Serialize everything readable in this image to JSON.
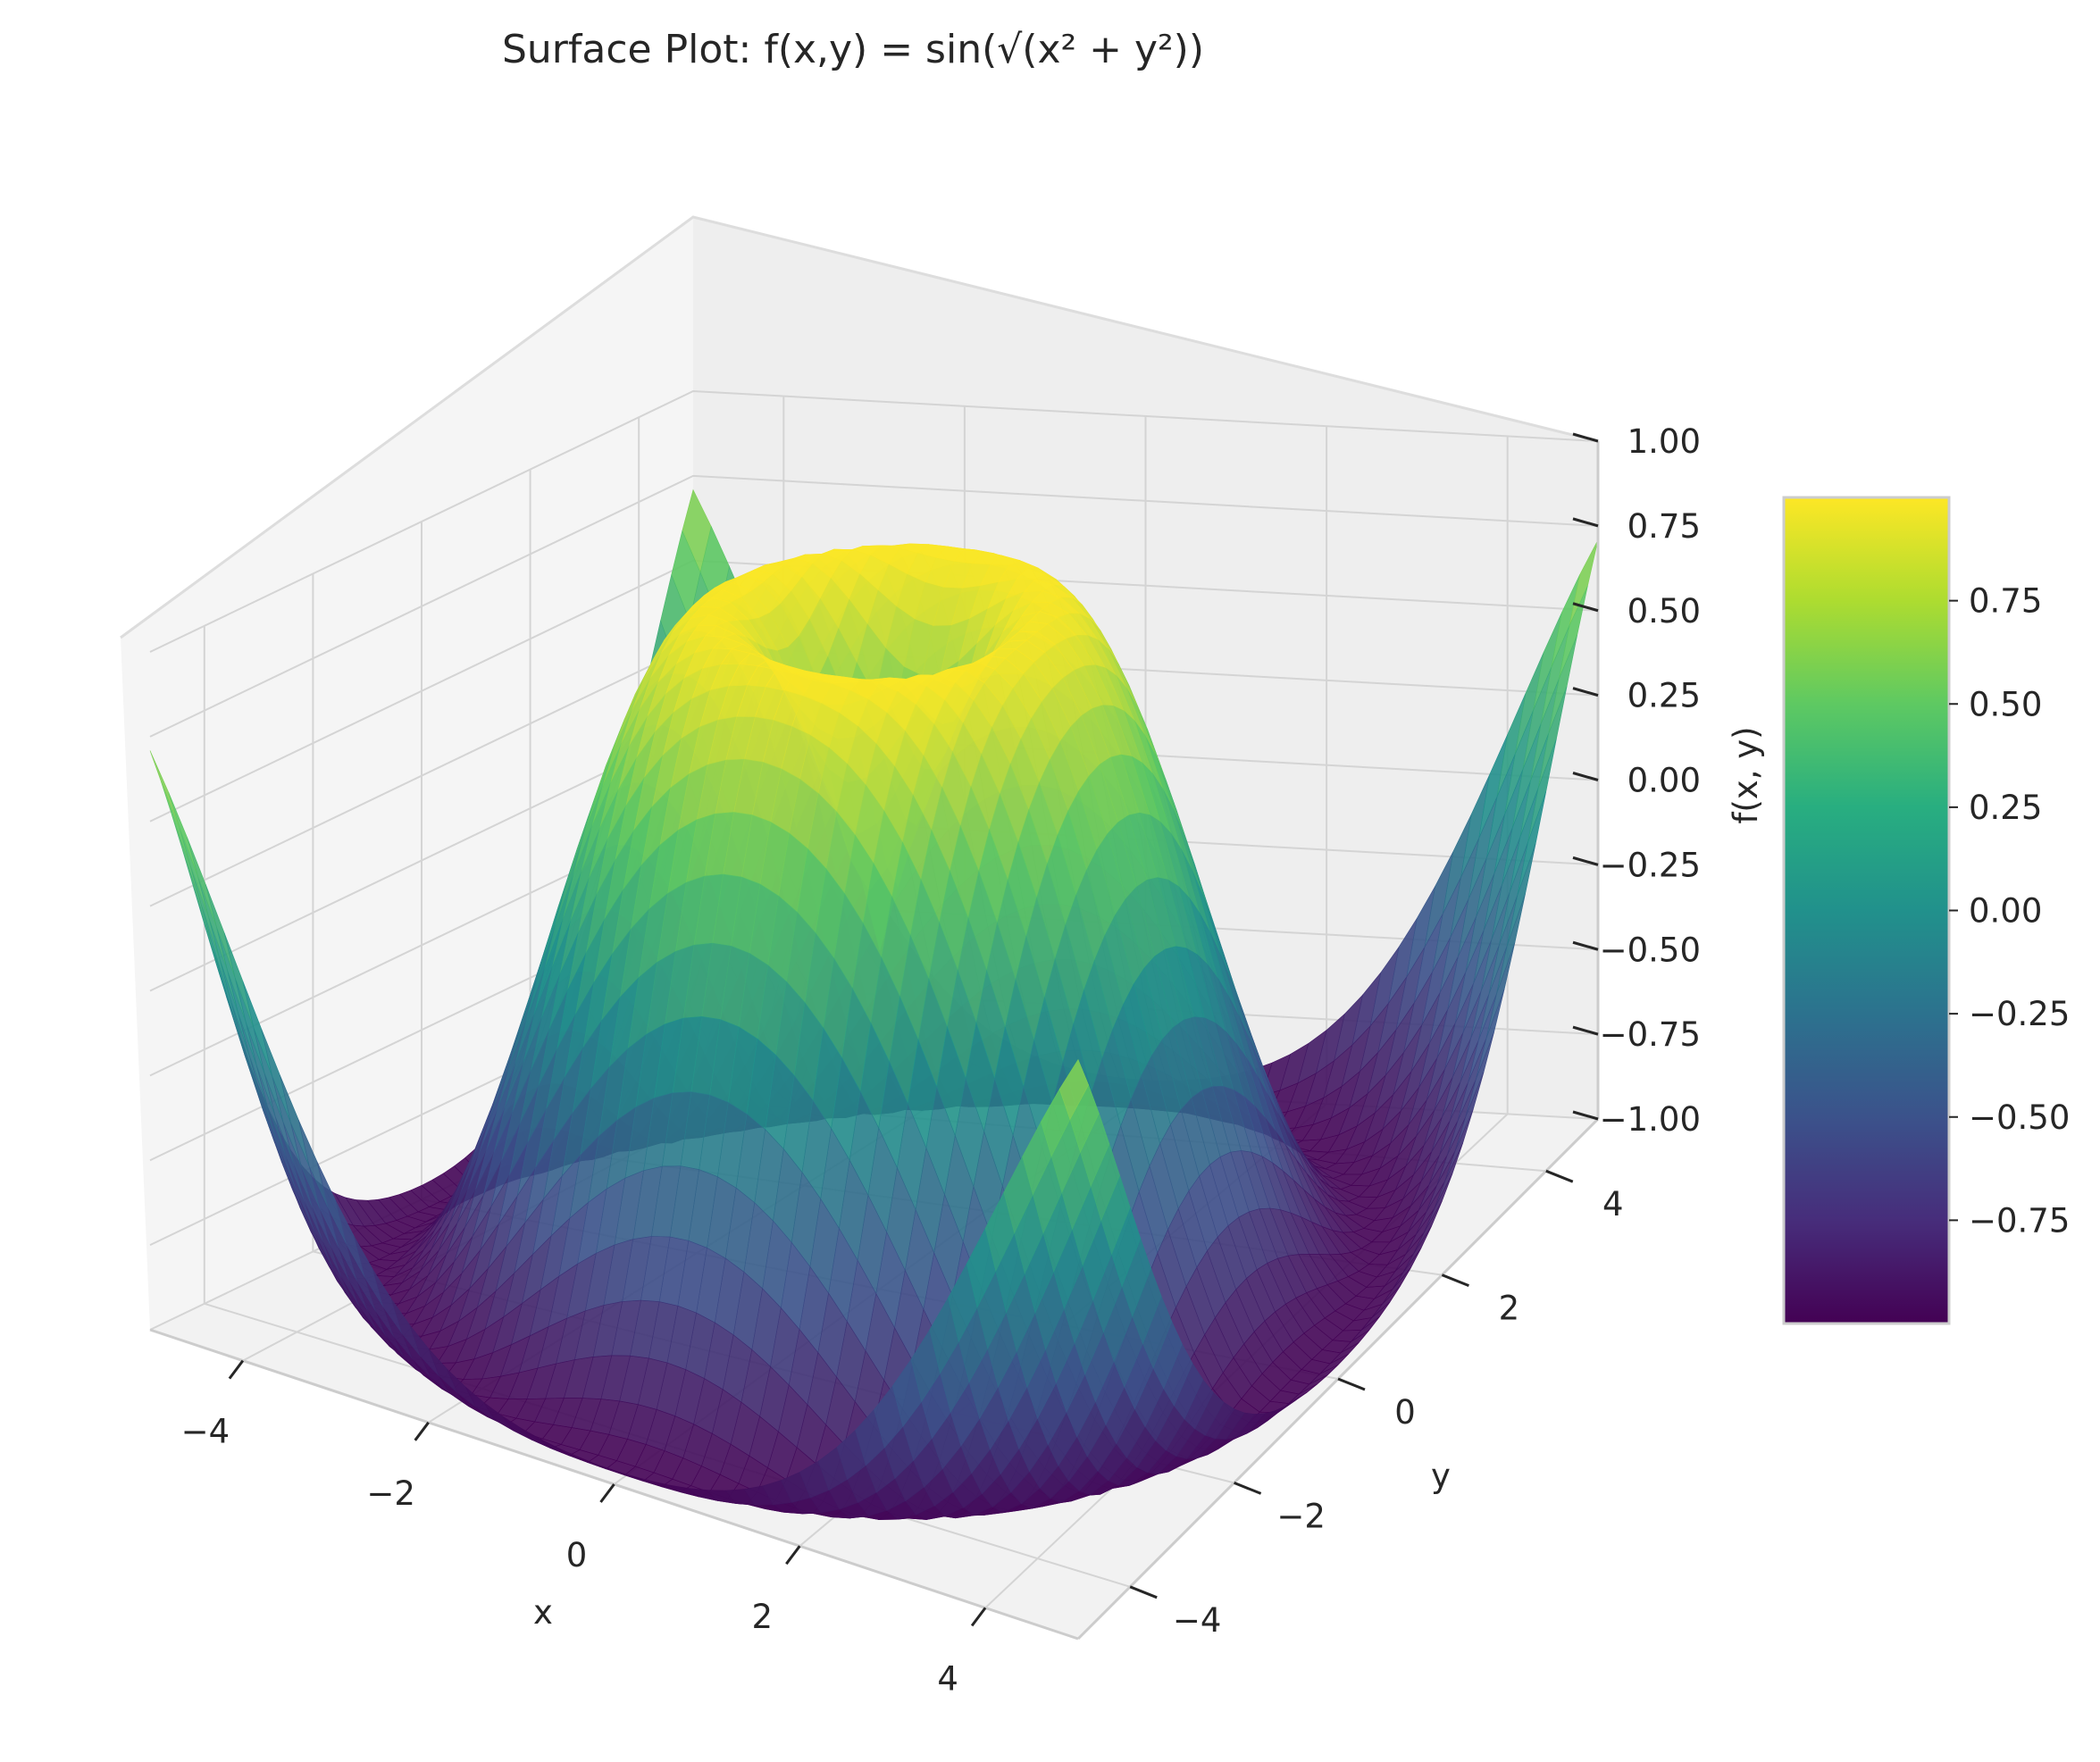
{
  "chart_data": [
    {
      "type": "surface",
      "title": "Surface Plot: f(x,y) = sin(√(x² + y²))",
      "function": "f(x,y) = sin(√(x² + y²))",
      "xlabel": "x",
      "ylabel": "y",
      "zlabel": "f(x, y)",
      "xlim": [
        -5,
        5
      ],
      "ylim": [
        -5,
        5
      ],
      "zlim": [
        -1,
        1
      ],
      "x_ticks": [
        -4,
        -2,
        0,
        2,
        4
      ],
      "y_ticks": [
        -4,
        -2,
        0,
        2,
        4
      ],
      "z_ticks": [
        -1.0,
        -0.75,
        -0.5,
        -0.25,
        0.0,
        0.25,
        0.5,
        0.75,
        1.0
      ],
      "x_tick_labels": [
        "−4",
        "−2",
        "0",
        "2",
        "4"
      ],
      "y_tick_labels": [
        "−4",
        "−2",
        "0",
        "2",
        "4"
      ],
      "z_tick_labels": [
        "−1.00",
        "−0.75",
        "−0.50",
        "−0.25",
        "0.00",
        "0.25",
        "0.50",
        "0.75",
        "1.00"
      ],
      "colormap": "viridis",
      "colors": [
        "#440154",
        "#3b528b",
        "#21918c",
        "#5ec962",
        "#fde725"
      ],
      "grid": true,
      "alpha": 0.9,
      "grid_resolution": 50,
      "view": {
        "elevation": 30,
        "azimuth": -60
      }
    },
    {
      "type": "colorbar",
      "range": [
        -1,
        1
      ],
      "ticks": [
        -0.75,
        -0.5,
        -0.25,
        0.0,
        0.25,
        0.5,
        0.75
      ],
      "tick_labels": [
        "−0.75",
        "−0.50",
        "−0.25",
        "0.00",
        "0.25",
        "0.50",
        "0.75"
      ],
      "colormap": "viridis"
    }
  ]
}
